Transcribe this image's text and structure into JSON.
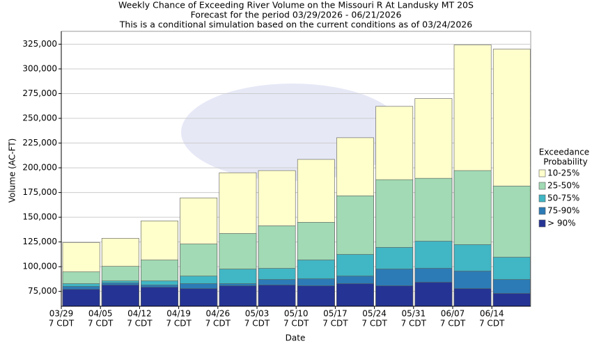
{
  "chart_data": {
    "type": "bar",
    "title": "Weekly Chance of Exceeding River Volume on the Missouri R At Landusky MT 20S",
    "subtitle": [
      "Forecast for the period 03/29/2026 - 06/21/2026",
      "This is a conditional simulation based on the current conditions as of 03/24/2026"
    ],
    "xlabel": "Date",
    "ylabel": "Volume (AC-FT)",
    "legend_title": [
      "Exceedance",
      "Probability"
    ],
    "categories": [
      [
        "03/29",
        "7 CDT"
      ],
      [
        "04/05",
        "7 CDT"
      ],
      [
        "04/12",
        "7 CDT"
      ],
      [
        "04/19",
        "7 CDT"
      ],
      [
        "04/26",
        "7 CDT"
      ],
      [
        "05/03",
        "7 CDT"
      ],
      [
        "05/10",
        "7 CDT"
      ],
      [
        "05/17",
        "7 CDT"
      ],
      [
        "05/24",
        "7 CDT"
      ],
      [
        "05/31",
        "7 CDT"
      ],
      [
        "06/07",
        "7 CDT"
      ],
      [
        "06/14",
        "7 CDT"
      ]
    ],
    "series": [
      {
        "name": "10-25%",
        "color": "#ffffcc",
        "values": [
          124400,
          128700,
          146300,
          169600,
          195000,
          197200,
          208500,
          230400,
          262100,
          270000,
          324300,
          320000
        ]
      },
      {
        "name": "25-50%",
        "color": "#a1dab4",
        "values": [
          94800,
          100400,
          106800,
          123000,
          133600,
          141400,
          144900,
          171700,
          188000,
          189400,
          197200,
          181600
        ]
      },
      {
        "name": "50-75%",
        "color": "#41b6c4",
        "values": [
          82800,
          85600,
          85600,
          90500,
          97600,
          98300,
          106800,
          112400,
          119500,
          125800,
          122300,
          109600
        ]
      },
      {
        "name": "75-90%",
        "color": "#2c7bb6",
        "values": [
          80000,
          83500,
          81400,
          82800,
          82800,
          87000,
          87700,
          90500,
          97600,
          98300,
          95500,
          87000
        ]
      },
      {
        "name": "> 90%",
        "color": "#253494",
        "values": [
          77000,
          81400,
          79200,
          77800,
          80600,
          81400,
          80600,
          82800,
          80600,
          84200,
          77800,
          72900
        ]
      }
    ],
    "ylim": [
      60000,
      338000
    ],
    "yticks": [
      {
        "value": 75000,
        "label": "75,000"
      },
      {
        "value": 100000,
        "label": "100,000"
      },
      {
        "value": 125000,
        "label": "125,000"
      },
      {
        "value": 150000,
        "label": "150,000"
      },
      {
        "value": 175000,
        "label": "175,000"
      },
      {
        "value": 200000,
        "label": "200,000"
      },
      {
        "value": 225000,
        "label": "225,000"
      },
      {
        "value": 250000,
        "label": "250,000"
      },
      {
        "value": 275000,
        "label": "275,000"
      },
      {
        "value": 300000,
        "label": "300,000"
      },
      {
        "value": 325000,
        "label": "325,000"
      }
    ],
    "grid": true
  }
}
